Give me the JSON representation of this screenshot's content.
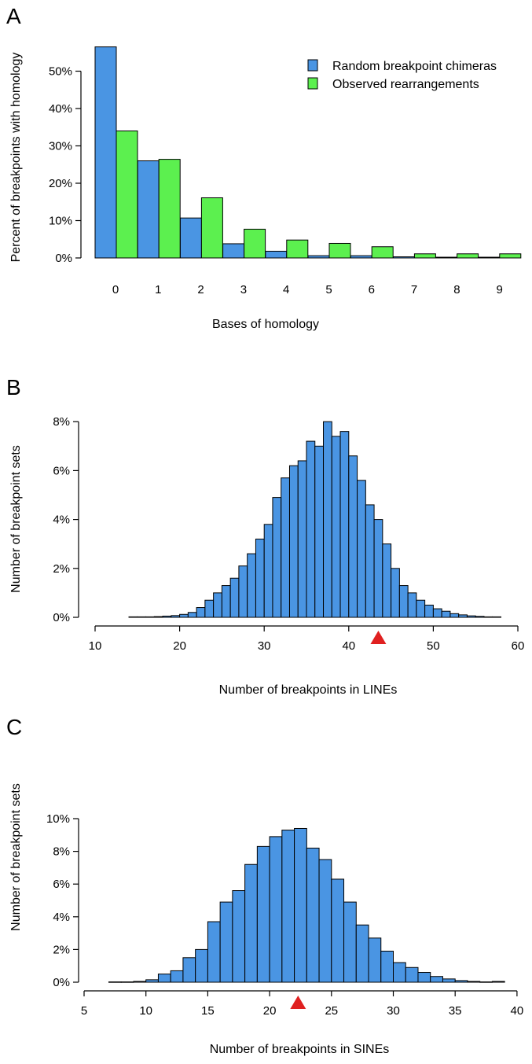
{
  "colors": {
    "random": "#4a95e3",
    "observed": "#5cf04f",
    "hist": "#4a95e3",
    "marker": "#e02020"
  },
  "panels": [
    {
      "letter": "A"
    },
    {
      "letter": "B"
    },
    {
      "letter": "C"
    }
  ],
  "chart_data": [
    {
      "type": "bar",
      "categories": [
        "0",
        "1",
        "2",
        "3",
        "4",
        "5",
        "6",
        "7",
        "8",
        "9"
      ],
      "series": [
        {
          "name": "Random breakpoint chimeras",
          "values": [
            56.5,
            26.0,
            10.7,
            3.8,
            1.8,
            0.6,
            0.6,
            0.3,
            0.2,
            0.2
          ]
        },
        {
          "name": "Observed rearrangements",
          "values": [
            34.0,
            26.4,
            16.1,
            7.7,
            4.8,
            3.9,
            3.0,
            1.1,
            1.1,
            1.1
          ]
        }
      ],
      "xlabel": "Bases of homology",
      "ylabel": "Percent of breakpoints with homology",
      "yticks": [
        "0%",
        "10%",
        "20%",
        "30%",
        "40%",
        "50%"
      ],
      "ylim": [
        0,
        58
      ],
      "legend": "top-right",
      "grid": false
    },
    {
      "type": "bar",
      "subtype": "histogram",
      "bin_start": 14,
      "bin_width": 1,
      "values": [
        0.02,
        0.02,
        0.02,
        0.03,
        0.05,
        0.07,
        0.12,
        0.2,
        0.4,
        0.7,
        1.0,
        1.3,
        1.6,
        2.1,
        2.6,
        3.2,
        3.8,
        4.9,
        5.7,
        6.2,
        6.4,
        7.2,
        7.0,
        8.0,
        7.4,
        7.6,
        6.6,
        5.6,
        4.6,
        4.0,
        3.0,
        2.0,
        1.3,
        1.0,
        0.7,
        0.5,
        0.35,
        0.25,
        0.15,
        0.1,
        0.06,
        0.04,
        0.02,
        0.02
      ],
      "xlabel": "Number of breakpoints in LINEs",
      "ylabel": "Number of breakpoint sets",
      "xticks": [
        10,
        20,
        30,
        40,
        50,
        60
      ],
      "yticks": [
        "0%",
        "2%",
        "4%",
        "6%",
        "8%"
      ],
      "xlim": [
        10,
        60
      ],
      "ylim": [
        0,
        8
      ],
      "observed_marker": 43.5,
      "grid": false
    },
    {
      "type": "bar",
      "subtype": "histogram",
      "bin_start": 7,
      "bin_width": 1,
      "values": [
        0.02,
        0.02,
        0.05,
        0.15,
        0.5,
        0.7,
        1.5,
        2.0,
        3.7,
        4.9,
        5.6,
        7.2,
        8.3,
        8.9,
        9.3,
        9.4,
        8.2,
        7.5,
        6.3,
        4.9,
        3.5,
        2.7,
        1.9,
        1.2,
        0.9,
        0.6,
        0.35,
        0.2,
        0.1,
        0.05,
        0.02,
        0.05
      ],
      "xlabel": "Number of breakpoints in SINEs",
      "ylabel": "Number of breakpoint sets",
      "xticks": [
        5,
        10,
        15,
        20,
        25,
        30,
        35,
        40
      ],
      "yticks": [
        "0%",
        "2%",
        "4%",
        "6%",
        "8%",
        "10%"
      ],
      "xlim": [
        5,
        40
      ],
      "ylim": [
        0,
        10
      ],
      "observed_marker": 22.3,
      "grid": false
    }
  ]
}
